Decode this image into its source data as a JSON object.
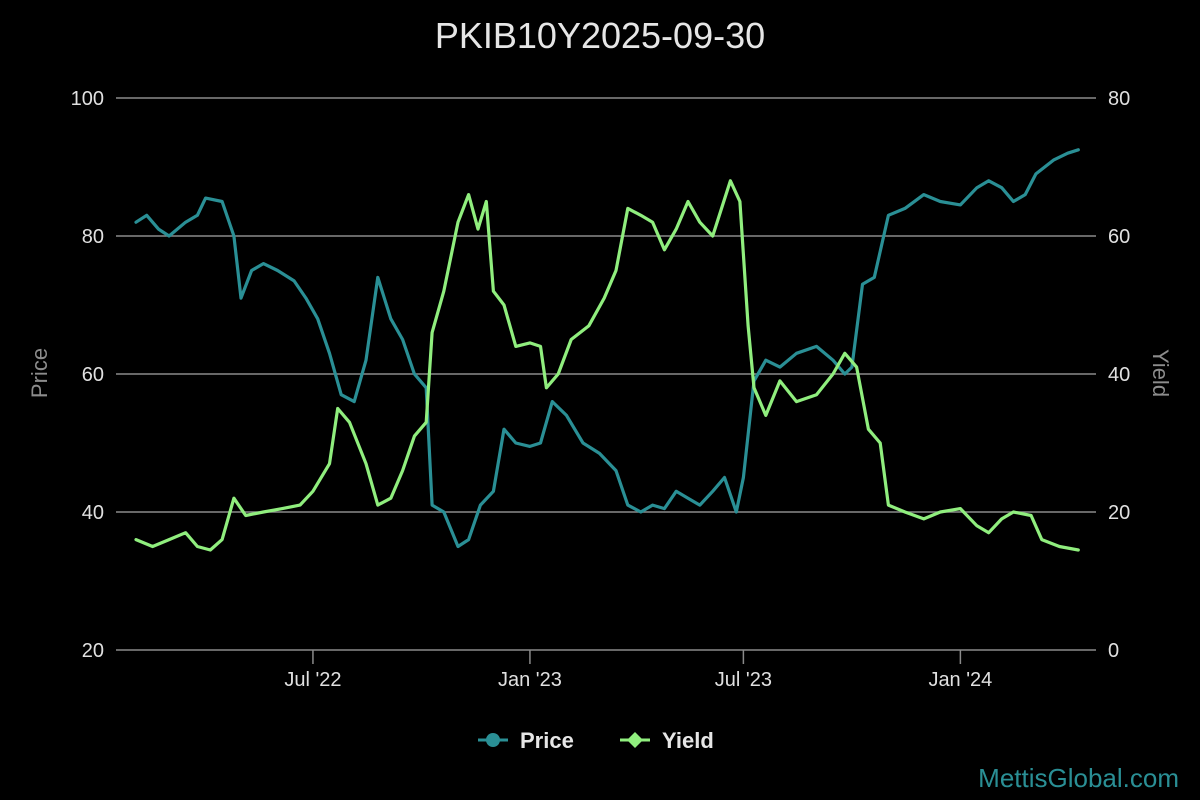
{
  "credit": "MettisGlobal.com",
  "chart_data": {
    "type": "line",
    "title": "PKIB10Y2025-09-30",
    "xlabel": "",
    "y_left": {
      "label": "Price",
      "ylim": [
        20,
        100
      ],
      "ticks": [
        "20",
        "40",
        "60",
        "80",
        "100"
      ]
    },
    "y_right": {
      "label": "Yield",
      "ylim": [
        0,
        80
      ],
      "ticks": [
        "0",
        "20",
        "40",
        "60",
        "80"
      ]
    },
    "x_ticks": [
      {
        "label": "Jul '22",
        "date": "2022-07-01"
      },
      {
        "label": "Jan '23",
        "date": "2023-01-01"
      },
      {
        "label": "Jul '23",
        "date": "2023-07-01"
      },
      {
        "label": "Jan '24",
        "date": "2024-01-01"
      }
    ],
    "grid": true,
    "legend_position": "bottom-center",
    "colors": {
      "price": "#2a8f95",
      "yield": "#90ee7e"
    },
    "series": [
      {
        "name": "Price",
        "axis": "left",
        "points": [
          [
            "2022-02-01",
            82
          ],
          [
            "2022-02-10",
            83
          ],
          [
            "2022-02-20",
            81
          ],
          [
            "2022-03-01",
            80
          ],
          [
            "2022-03-15",
            82
          ],
          [
            "2022-03-25",
            83
          ],
          [
            "2022-04-01",
            85.5
          ],
          [
            "2022-04-15",
            85
          ],
          [
            "2022-04-25",
            80
          ],
          [
            "2022-05-01",
            71
          ],
          [
            "2022-05-10",
            75
          ],
          [
            "2022-05-20",
            76
          ],
          [
            "2022-06-01",
            75
          ],
          [
            "2022-06-15",
            73.5
          ],
          [
            "2022-06-25",
            71
          ],
          [
            "2022-07-05",
            68
          ],
          [
            "2022-07-15",
            63
          ],
          [
            "2022-07-25",
            57
          ],
          [
            "2022-08-05",
            56
          ],
          [
            "2022-08-15",
            62
          ],
          [
            "2022-08-25",
            74
          ],
          [
            "2022-09-05",
            68
          ],
          [
            "2022-09-15",
            65
          ],
          [
            "2022-09-25",
            60
          ],
          [
            "2022-10-05",
            58
          ],
          [
            "2022-10-10",
            41
          ],
          [
            "2022-10-20",
            40
          ],
          [
            "2022-11-01",
            35
          ],
          [
            "2022-11-10",
            36
          ],
          [
            "2022-11-20",
            41
          ],
          [
            "2022-12-01",
            43
          ],
          [
            "2022-12-10",
            52
          ],
          [
            "2022-12-20",
            50
          ],
          [
            "2023-01-01",
            49.5
          ],
          [
            "2023-01-10",
            50
          ],
          [
            "2023-01-20",
            56
          ],
          [
            "2023-02-01",
            54
          ],
          [
            "2023-02-15",
            50
          ],
          [
            "2023-03-01",
            48.5
          ],
          [
            "2023-03-15",
            46
          ],
          [
            "2023-03-25",
            41
          ],
          [
            "2023-04-05",
            40
          ],
          [
            "2023-04-15",
            41
          ],
          [
            "2023-04-25",
            40.5
          ],
          [
            "2023-05-05",
            43
          ],
          [
            "2023-05-15",
            42
          ],
          [
            "2023-05-25",
            41
          ],
          [
            "2023-06-05",
            43
          ],
          [
            "2023-06-15",
            45
          ],
          [
            "2023-06-25",
            40
          ],
          [
            "2023-07-01",
            45
          ],
          [
            "2023-07-10",
            59
          ],
          [
            "2023-07-20",
            62
          ],
          [
            "2023-08-01",
            61
          ],
          [
            "2023-08-15",
            63
          ],
          [
            "2023-09-01",
            64
          ],
          [
            "2023-09-15",
            62
          ],
          [
            "2023-09-25",
            60
          ],
          [
            "2023-10-01",
            61
          ],
          [
            "2023-10-10",
            73
          ],
          [
            "2023-10-20",
            74
          ],
          [
            "2023-11-01",
            83
          ],
          [
            "2023-11-15",
            84
          ],
          [
            "2023-12-01",
            86
          ],
          [
            "2023-12-15",
            85
          ],
          [
            "2024-01-01",
            84.5
          ],
          [
            "2024-01-15",
            87
          ],
          [
            "2024-01-25",
            88
          ],
          [
            "2024-02-05",
            87
          ],
          [
            "2024-02-15",
            85
          ],
          [
            "2024-02-25",
            86
          ],
          [
            "2024-03-05",
            89
          ],
          [
            "2024-03-20",
            91
          ],
          [
            "2024-04-01",
            92
          ],
          [
            "2024-04-10",
            92.5
          ]
        ]
      },
      {
        "name": "Yield",
        "axis": "right",
        "points": [
          [
            "2022-02-01",
            16
          ],
          [
            "2022-02-15",
            15
          ],
          [
            "2022-03-01",
            16
          ],
          [
            "2022-03-15",
            17
          ],
          [
            "2022-03-25",
            15
          ],
          [
            "2022-04-05",
            14.5
          ],
          [
            "2022-04-15",
            16
          ],
          [
            "2022-04-25",
            22
          ],
          [
            "2022-05-05",
            19.5
          ],
          [
            "2022-05-20",
            20
          ],
          [
            "2022-06-05",
            20.5
          ],
          [
            "2022-06-20",
            21
          ],
          [
            "2022-07-01",
            23
          ],
          [
            "2022-07-15",
            27
          ],
          [
            "2022-07-22",
            35
          ],
          [
            "2022-08-01",
            33
          ],
          [
            "2022-08-15",
            27
          ],
          [
            "2022-08-25",
            21
          ],
          [
            "2022-09-05",
            22
          ],
          [
            "2022-09-15",
            26
          ],
          [
            "2022-09-25",
            31
          ],
          [
            "2022-10-05",
            33
          ],
          [
            "2022-10-10",
            46
          ],
          [
            "2022-10-20",
            52
          ],
          [
            "2022-11-01",
            62
          ],
          [
            "2022-11-10",
            66
          ],
          [
            "2022-11-18",
            61
          ],
          [
            "2022-11-25",
            65
          ],
          [
            "2022-12-01",
            52
          ],
          [
            "2022-12-10",
            50
          ],
          [
            "2022-12-20",
            44
          ],
          [
            "2023-01-01",
            44.5
          ],
          [
            "2023-01-10",
            44
          ],
          [
            "2023-01-15",
            38
          ],
          [
            "2023-01-25",
            40
          ],
          [
            "2023-02-05",
            45
          ],
          [
            "2023-02-20",
            47
          ],
          [
            "2023-03-05",
            51
          ],
          [
            "2023-03-15",
            55
          ],
          [
            "2023-03-25",
            64
          ],
          [
            "2023-04-05",
            63
          ],
          [
            "2023-04-15",
            62
          ],
          [
            "2023-04-25",
            58
          ],
          [
            "2023-05-05",
            61
          ],
          [
            "2023-05-15",
            65
          ],
          [
            "2023-05-25",
            62
          ],
          [
            "2023-06-05",
            60
          ],
          [
            "2023-06-20",
            68
          ],
          [
            "2023-06-28",
            65
          ],
          [
            "2023-07-05",
            47
          ],
          [
            "2023-07-10",
            38
          ],
          [
            "2023-07-20",
            34
          ],
          [
            "2023-08-01",
            39
          ],
          [
            "2023-08-15",
            36
          ],
          [
            "2023-09-01",
            37
          ],
          [
            "2023-09-15",
            40
          ],
          [
            "2023-09-25",
            43
          ],
          [
            "2023-10-05",
            41
          ],
          [
            "2023-10-15",
            32
          ],
          [
            "2023-10-25",
            30
          ],
          [
            "2023-11-01",
            21
          ],
          [
            "2023-11-15",
            20
          ],
          [
            "2023-12-01",
            19
          ],
          [
            "2023-12-15",
            20
          ],
          [
            "2024-01-01",
            20.5
          ],
          [
            "2024-01-15",
            18
          ],
          [
            "2024-01-25",
            17
          ],
          [
            "2024-02-05",
            19
          ],
          [
            "2024-02-15",
            20
          ],
          [
            "2024-03-01",
            19.5
          ],
          [
            "2024-03-10",
            16
          ],
          [
            "2024-03-25",
            15
          ],
          [
            "2024-04-10",
            14.5
          ]
        ]
      }
    ]
  }
}
